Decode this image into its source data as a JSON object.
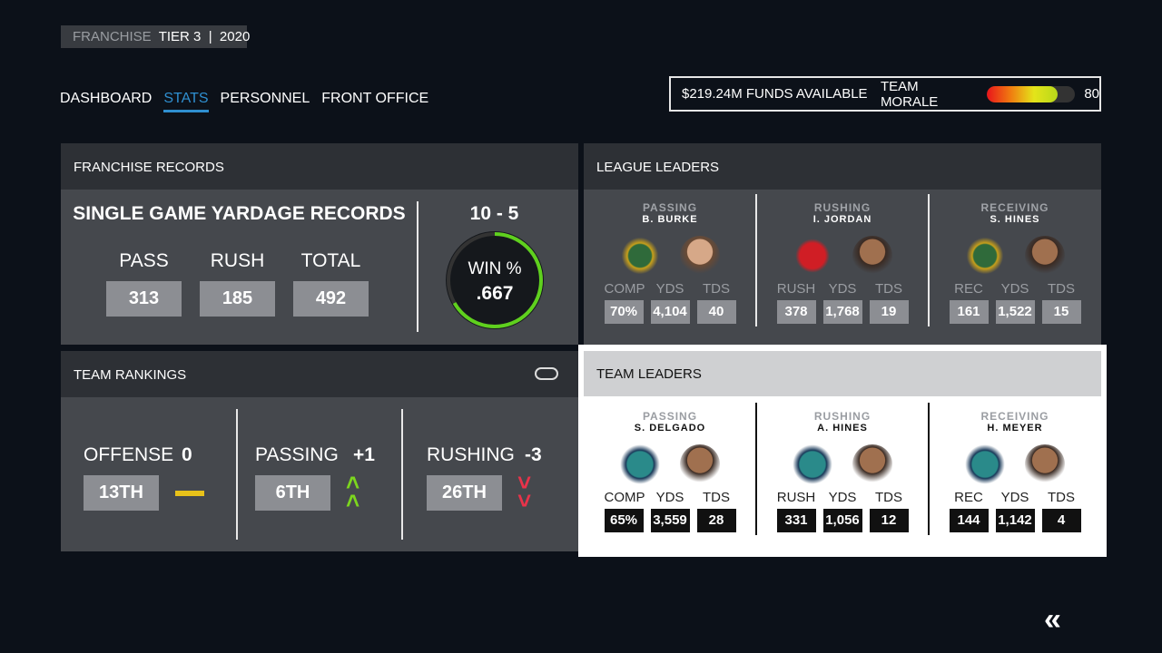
{
  "header": {
    "mode": "FRANCHISE",
    "info": "TIER 3  |  2020"
  },
  "nav": [
    {
      "label": "DASHBOARD"
    },
    {
      "label": "STATS",
      "active": true
    },
    {
      "label": "PERSONNEL"
    },
    {
      "label": "FRONT OFFICE"
    }
  ],
  "status": {
    "funds": "$219.24M FUNDS AVAILABLE",
    "morale_label": "TEAM MORALE",
    "morale_value": "80",
    "morale_level": 80
  },
  "franchise_records": {
    "title": "FRANCHISE RECORDS",
    "subtitle": "SINGLE GAME YARDAGE RECORDS",
    "stats": [
      {
        "label": "PASS",
        "value": "313"
      },
      {
        "label": "RUSH",
        "value": "185"
      },
      {
        "label": "TOTAL",
        "value": "492"
      }
    ],
    "record": "10 - 5",
    "win_label": "WIN %",
    "win_value": ".667",
    "win_fraction": 0.667
  },
  "league_leaders": {
    "title": "LEAGUE LEADERS",
    "groups": [
      {
        "category": "PASSING",
        "name": "B. BURKE",
        "team_icon": "lumberjack-logo",
        "labels": [
          "COMP",
          "YDS",
          "TDS"
        ],
        "values": [
          "70%",
          "4,104",
          "40"
        ]
      },
      {
        "category": "RUSHING",
        "name": "I. JORDAN",
        "team_icon": "outlaw-logo",
        "labels": [
          "RUSH",
          "YDS",
          "TDS"
        ],
        "values": [
          "378",
          "1,768",
          "19"
        ]
      },
      {
        "category": "RECEIVING",
        "name": "S. HINES",
        "team_icon": "lumberjack-logo",
        "labels": [
          "REC",
          "YDS",
          "TDS"
        ],
        "values": [
          "161",
          "1,522",
          "15"
        ]
      }
    ]
  },
  "team_rankings": {
    "title": "TEAM RANKINGS",
    "items": [
      {
        "label": "OFFENSE",
        "change": "0",
        "rank": "13TH",
        "trend": "none"
      },
      {
        "label": "PASSING",
        "change": "+1",
        "rank": "6TH",
        "trend": "up"
      },
      {
        "label": "RUSHING",
        "change": "-3",
        "rank": "26TH",
        "trend": "down"
      }
    ]
  },
  "team_leaders": {
    "title": "TEAM LEADERS",
    "groups": [
      {
        "category": "PASSING",
        "name": "S. DELGADO",
        "team_icon": "bear-logo",
        "labels": [
          "COMP",
          "YDS",
          "TDS"
        ],
        "values": [
          "65%",
          "3,559",
          "28"
        ]
      },
      {
        "category": "RUSHING",
        "name": "A. HINES",
        "team_icon": "bear-logo",
        "labels": [
          "RUSH",
          "YDS",
          "TDS"
        ],
        "values": [
          "331",
          "1,056",
          "12"
        ]
      },
      {
        "category": "RECEIVING",
        "name": "H. MEYER",
        "team_icon": "bear-logo",
        "labels": [
          "REC",
          "YDS",
          "TDS"
        ],
        "values": [
          "144",
          "1,142",
          "4"
        ]
      }
    ]
  },
  "colors": {
    "accent": "#2f8fd0",
    "up": "#7cd61e",
    "down": "#e8334a",
    "neutral": "#e8c21a",
    "win_ring": "#5fd01e"
  }
}
